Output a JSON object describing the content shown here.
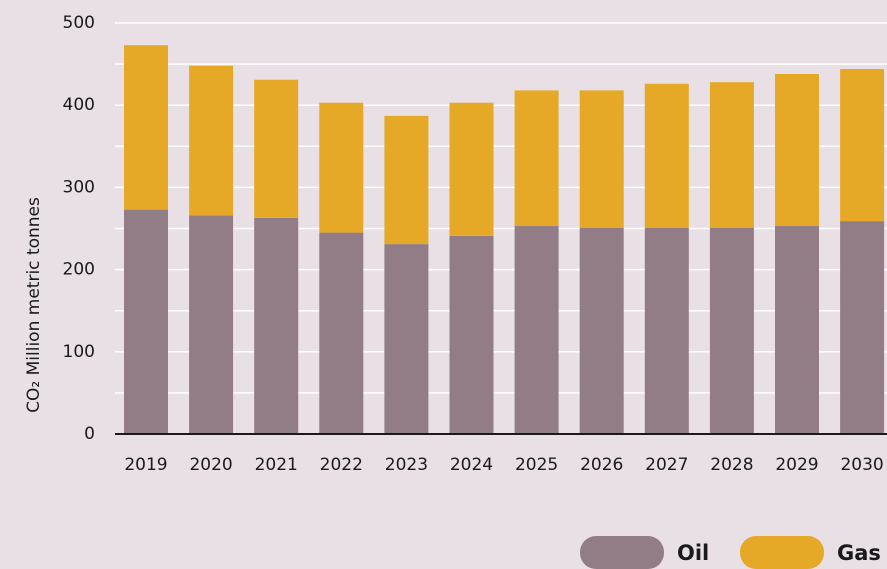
{
  "chart_data": {
    "type": "stacked_bar",
    "y_label": "CO₂ Million metric tonnes",
    "categories": [
      "2019",
      "2020",
      "2021",
      "2022",
      "2023",
      "2024",
      "2025",
      "2026",
      "2027",
      "2028",
      "2029",
      "2030"
    ],
    "series": [
      {
        "name": "Oil",
        "color": "#927d87",
        "values": [
          273,
          266,
          263,
          245,
          231,
          241,
          253,
          251,
          251,
          251,
          253,
          259
        ]
      },
      {
        "name": "Gas",
        "color": "#e5a827",
        "values": [
          200,
          182,
          168,
          158,
          156,
          162,
          165,
          167,
          175,
          177,
          185,
          185
        ]
      }
    ],
    "ylim": [
      0,
      500
    ],
    "yticks": [
      0,
      100,
      200,
      300,
      400,
      500
    ],
    "yminor": [
      50,
      150,
      250,
      350,
      450
    ],
    "grid": true,
    "legend": "bottom-right"
  }
}
